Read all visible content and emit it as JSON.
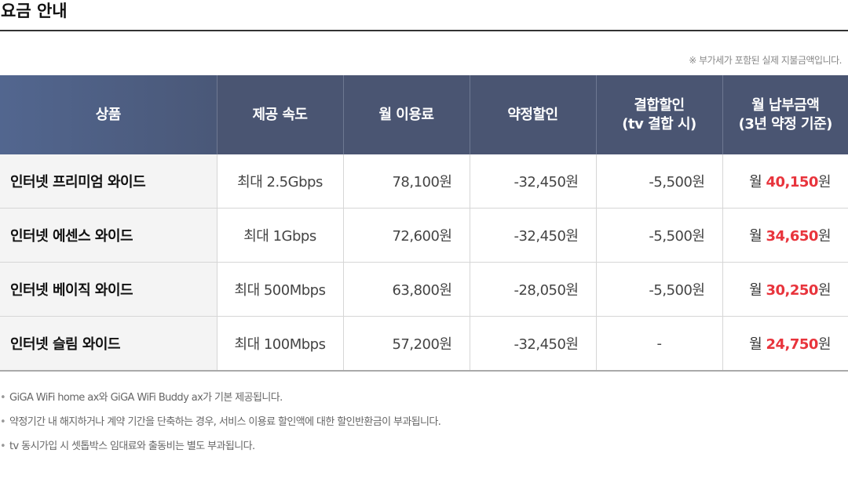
{
  "page": {
    "title": "요금 안내",
    "vat_note": "※ 부가세가 포함된 실제 지불금액입니다."
  },
  "table": {
    "headers": [
      {
        "line1": "상품",
        "line2": ""
      },
      {
        "line1": "제공 속도",
        "line2": ""
      },
      {
        "line1": "월 이용료",
        "line2": ""
      },
      {
        "line1": "약정할인",
        "line2": ""
      },
      {
        "line1": "결합할인",
        "line2": "(tv 결합 시)"
      },
      {
        "line1": "월 납부금액",
        "line2": "(3년 약정 기준)"
      }
    ],
    "rows": [
      {
        "product": "인터넷 프리미엄 와이드",
        "speed": "최대 2.5Gbps",
        "monthly_fee": "78,100원",
        "contract_discount": "-32,450원",
        "bundle_discount": "-5,500원",
        "payment_prefix": "월 ",
        "payment_amount": "40,150",
        "payment_unit": "원"
      },
      {
        "product": "인터넷 에센스 와이드",
        "speed": "최대 1Gbps",
        "monthly_fee": "72,600원",
        "contract_discount": "-32,450원",
        "bundle_discount": "-5,500원",
        "payment_prefix": "월 ",
        "payment_amount": "34,650",
        "payment_unit": "원"
      },
      {
        "product": "인터넷 베이직 와이드",
        "speed": "최대 500Mbps",
        "monthly_fee": "63,800원",
        "contract_discount": "-28,050원",
        "bundle_discount": "-5,500원",
        "payment_prefix": "월 ",
        "payment_amount": "30,250",
        "payment_unit": "원"
      },
      {
        "product": "인터넷 슬림 와이드",
        "speed": "최대 100Mbps",
        "monthly_fee": "57,200원",
        "contract_discount": "-32,450원",
        "bundle_discount": "-",
        "payment_prefix": "월 ",
        "payment_amount": "24,750",
        "payment_unit": "원"
      }
    ]
  },
  "notes": [
    "GiGA WiFi home ax와 GiGA WiFi Buddy ax가 기본 제공됩니다.",
    "약정기간 내 해지하거나 계약 기간을 단축하는 경우, 서비스 이용료 할인액에 대한 할인반환금이 부과됩니다.",
    "tv 동시가입 시 셋톱박스 임대료와 출동비는 별도 부과됩니다."
  ],
  "colors": {
    "header_bg": "#4a5572",
    "highlight_price": "#e8343c"
  }
}
